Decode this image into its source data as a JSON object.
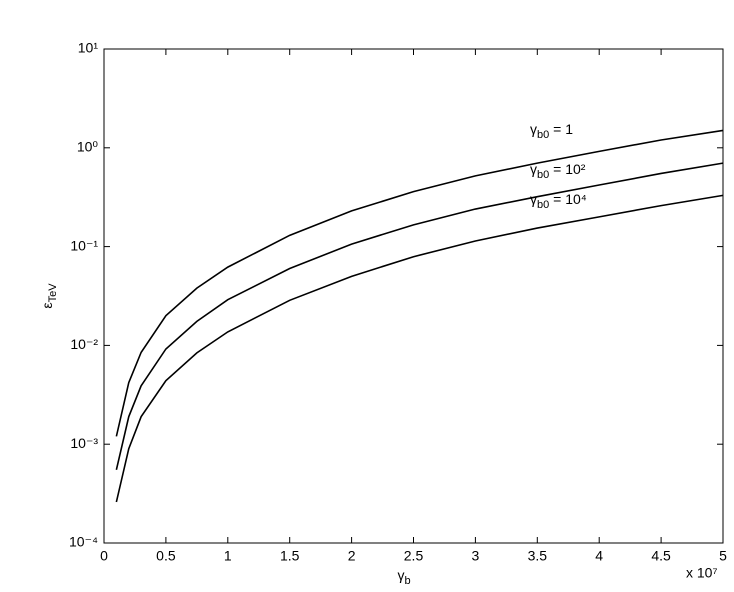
{
  "chart_data": {
    "type": "line",
    "yscale": "log",
    "xlabel": {
      "symbol": "γ",
      "subscript": "b"
    },
    "ylabel": {
      "symbol": "ε",
      "subscript": "TeV"
    },
    "x_multiplier": "x 10⁷",
    "x": [
      0.1,
      0.2,
      0.3,
      0.5,
      0.75,
      1,
      1.5,
      2,
      2.5,
      3,
      3.5,
      4,
      4.5,
      5
    ],
    "series": [
      {
        "color": "#000000",
        "values": [
          0.0012,
          0.0042,
          0.0085,
          0.02,
          0.038,
          0.062,
          0.13,
          0.23,
          0.36,
          0.52,
          0.7,
          0.92,
          1.2,
          1.5
        ]
      },
      {
        "color": "#000000",
        "values": [
          0.00055,
          0.0019,
          0.0039,
          0.0092,
          0.0175,
          0.029,
          0.06,
          0.106,
          0.166,
          0.24,
          0.32,
          0.42,
          0.55,
          0.7
        ]
      },
      {
        "color": "#000000",
        "values": [
          0.00026,
          0.0009,
          0.0019,
          0.0044,
          0.0084,
          0.0137,
          0.0286,
          0.05,
          0.079,
          0.114,
          0.154,
          0.2,
          0.26,
          0.33
        ]
      }
    ],
    "annotations": [
      {
        "symbol": "γ",
        "subscript": "b0",
        "suffix": " = 1"
      },
      {
        "symbol": "γ",
        "subscript": "b0",
        "suffix": " = 10²"
      },
      {
        "symbol": "γ",
        "subscript": "b0",
        "suffix": " = 10⁴"
      }
    ],
    "xlim": [
      0,
      5
    ],
    "xticks": [
      0,
      0.5,
      1,
      1.5,
      2,
      2.5,
      3,
      3.5,
      4,
      4.5,
      5
    ],
    "ylim": [
      0.0001,
      10
    ],
    "yticks": [
      {
        "value": 0.0001,
        "label": "10⁻⁴"
      },
      {
        "value": 0.001,
        "label": "10⁻³"
      },
      {
        "value": 0.01,
        "label": "10⁻²"
      },
      {
        "value": 0.1,
        "label": "10⁻¹"
      },
      {
        "value": 1,
        "label": "10⁰"
      },
      {
        "value": 10,
        "label": "10¹"
      }
    ],
    "grid": false
  }
}
